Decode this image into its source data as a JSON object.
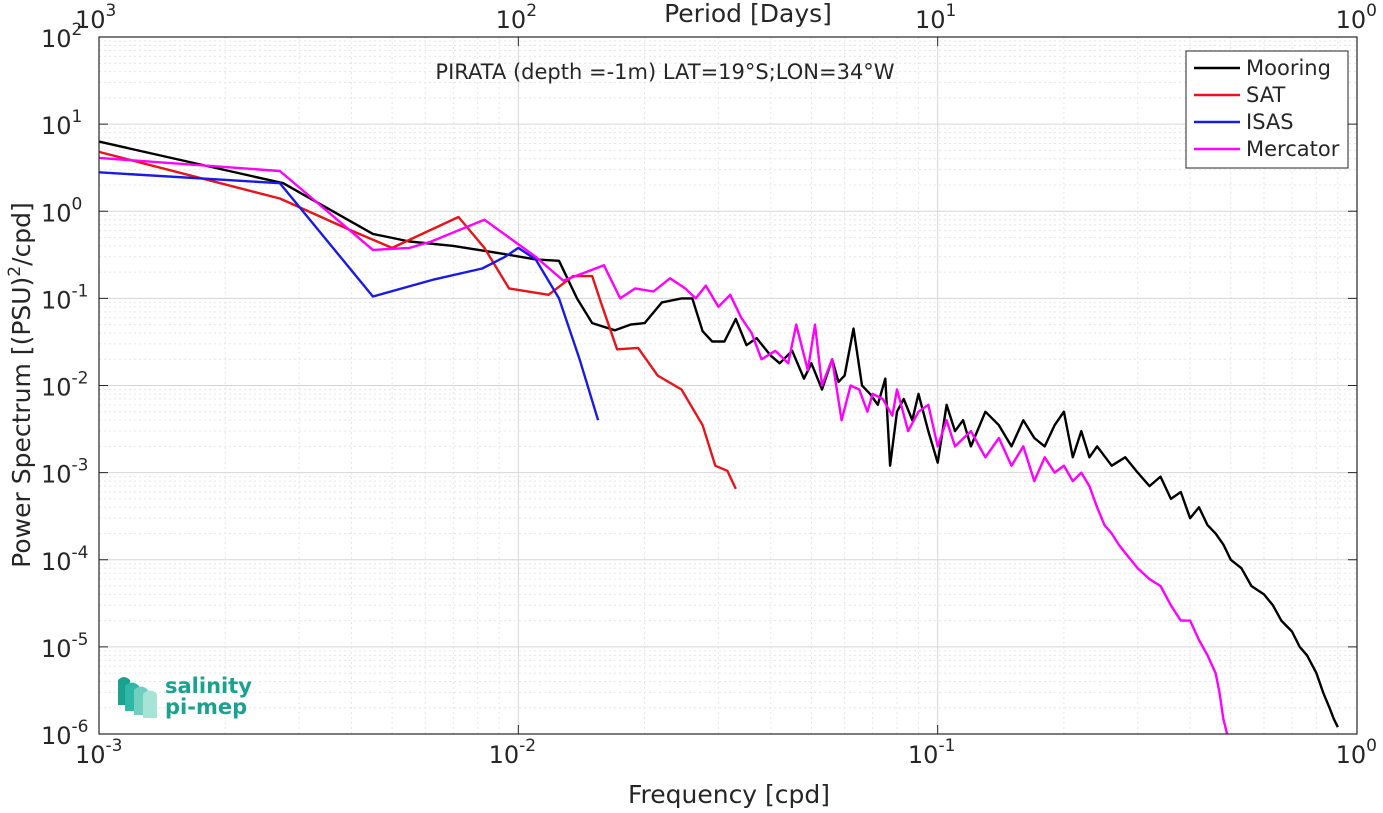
{
  "chart_data": {
    "type": "line",
    "title": "PIRATA (depth =-1m) LAT=19°S;LON=34°W",
    "xlabel": "Frequency [cpd]",
    "ylabel": "Power Spectrum [(PSU)",
    "ylabel_sup": "2",
    "ylabel_suffix": "/cpd]",
    "top_xlabel": "Period [Days]",
    "x_scale": "log",
    "y_scale": "log",
    "xlim": [
      0.001,
      1
    ],
    "ylim": [
      1e-06,
      100
    ],
    "grid": true,
    "legend_position": "top-right",
    "x_ticks": [
      {
        "value": 0.001,
        "base": "10",
        "exp": "-3"
      },
      {
        "value": 0.01,
        "base": "10",
        "exp": "-2"
      },
      {
        "value": 0.1,
        "base": "10",
        "exp": "-1"
      },
      {
        "value": 1,
        "base": "10",
        "exp": "0"
      }
    ],
    "top_ticks": [
      {
        "freq": 0.001,
        "base": "10",
        "exp": "3"
      },
      {
        "freq": 0.01,
        "base": "10",
        "exp": "2"
      },
      {
        "freq": 0.1,
        "base": "10",
        "exp": "1"
      },
      {
        "freq": 1,
        "base": "10",
        "exp": "0"
      }
    ],
    "y_ticks": [
      {
        "value": 1e-06,
        "base": "10",
        "exp": "-6"
      },
      {
        "value": 1e-05,
        "base": "10",
        "exp": "-5"
      },
      {
        "value": 0.0001,
        "base": "10",
        "exp": "-4"
      },
      {
        "value": 0.001,
        "base": "10",
        "exp": "-3"
      },
      {
        "value": 0.01,
        "base": "10",
        "exp": "-2"
      },
      {
        "value": 0.1,
        "base": "10",
        "exp": "-1"
      },
      {
        "value": 1,
        "base": "10",
        "exp": "0"
      },
      {
        "value": 10,
        "base": "10",
        "exp": "1"
      },
      {
        "value": 100,
        "base": "10",
        "exp": "2"
      }
    ],
    "series": [
      {
        "name": "Mooring",
        "color": "#000000",
        "points": [
          [
            0.001,
            6.3
          ],
          [
            0.00275,
            2.1
          ],
          [
            0.0045,
            0.55
          ],
          [
            0.0055,
            0.45
          ],
          [
            0.007,
            0.4
          ],
          [
            0.009,
            0.33
          ],
          [
            0.011,
            0.28
          ],
          [
            0.0125,
            0.27
          ],
          [
            0.0138,
            0.1
          ],
          [
            0.015,
            0.052
          ],
          [
            0.017,
            0.043
          ],
          [
            0.0185,
            0.05
          ],
          [
            0.02,
            0.052
          ],
          [
            0.022,
            0.09
          ],
          [
            0.0245,
            0.1
          ],
          [
            0.026,
            0.1
          ],
          [
            0.0275,
            0.042
          ],
          [
            0.029,
            0.032
          ],
          [
            0.031,
            0.032
          ],
          [
            0.033,
            0.058
          ],
          [
            0.035,
            0.029
          ],
          [
            0.037,
            0.035
          ],
          [
            0.04,
            0.022
          ],
          [
            0.042,
            0.018
          ],
          [
            0.045,
            0.025
          ],
          [
            0.048,
            0.012
          ],
          [
            0.05,
            0.018
          ],
          [
            0.053,
            0.009
          ],
          [
            0.056,
            0.02
          ],
          [
            0.058,
            0.011
          ],
          [
            0.06,
            0.013
          ],
          [
            0.063,
            0.045
          ],
          [
            0.066,
            0.01
          ],
          [
            0.069,
            0.008
          ],
          [
            0.072,
            0.006
          ],
          [
            0.075,
            0.012
          ],
          [
            0.077,
            0.0012
          ],
          [
            0.08,
            0.005
          ],
          [
            0.083,
            0.007
          ],
          [
            0.087,
            0.004
          ],
          [
            0.09,
            0.008
          ],
          [
            0.095,
            0.003
          ],
          [
            0.1,
            0.0013
          ],
          [
            0.105,
            0.006
          ],
          [
            0.11,
            0.003
          ],
          [
            0.115,
            0.004
          ],
          [
            0.12,
            0.002
          ],
          [
            0.13,
            0.005
          ],
          [
            0.14,
            0.0035
          ],
          [
            0.15,
            0.002
          ],
          [
            0.16,
            0.004
          ],
          [
            0.17,
            0.0025
          ],
          [
            0.18,
            0.002
          ],
          [
            0.19,
            0.0035
          ],
          [
            0.2,
            0.005
          ],
          [
            0.21,
            0.0015
          ],
          [
            0.22,
            0.003
          ],
          [
            0.23,
            0.0015
          ],
          [
            0.24,
            0.002
          ],
          [
            0.26,
            0.0012
          ],
          [
            0.28,
            0.0015
          ],
          [
            0.3,
            0.001
          ],
          [
            0.32,
            0.0007
          ],
          [
            0.34,
            0.0009
          ],
          [
            0.36,
            0.0005
          ],
          [
            0.38,
            0.0006
          ],
          [
            0.4,
            0.0003
          ],
          [
            0.42,
            0.0004
          ],
          [
            0.44,
            0.00025
          ],
          [
            0.46,
            0.0002
          ],
          [
            0.48,
            0.00015
          ],
          [
            0.5,
            0.0001
          ],
          [
            0.53,
            8e-05
          ],
          [
            0.56,
            5e-05
          ],
          [
            0.6,
            4e-05
          ],
          [
            0.63,
            3e-05
          ],
          [
            0.66,
            2e-05
          ],
          [
            0.7,
            1.5e-05
          ],
          [
            0.73,
            1e-05
          ],
          [
            0.76,
            8e-06
          ],
          [
            0.8,
            5e-06
          ],
          [
            0.83,
            3e-06
          ],
          [
            0.86,
            2e-06
          ],
          [
            0.88,
            1.5e-06
          ],
          [
            0.9,
            1.2e-06
          ]
        ]
      },
      {
        "name": "SAT",
        "color": "#e8141a",
        "points": [
          [
            0.001,
            4.8
          ],
          [
            0.0027,
            1.4
          ],
          [
            0.004,
            0.6
          ],
          [
            0.005,
            0.38
          ],
          [
            0.0072,
            0.86
          ],
          [
            0.0083,
            0.38
          ],
          [
            0.0095,
            0.13
          ],
          [
            0.0118,
            0.11
          ],
          [
            0.0135,
            0.18
          ],
          [
            0.015,
            0.18
          ],
          [
            0.0158,
            0.085
          ],
          [
            0.0172,
            0.026
          ],
          [
            0.0193,
            0.027
          ],
          [
            0.0215,
            0.013
          ],
          [
            0.0245,
            0.009
          ],
          [
            0.0275,
            0.0035
          ],
          [
            0.0295,
            0.0012
          ],
          [
            0.0315,
            0.00105
          ],
          [
            0.033,
            0.00065
          ]
        ]
      },
      {
        "name": "ISAS",
        "color": "#1a1ae6",
        "points": [
          [
            0.001,
            2.8
          ],
          [
            0.0027,
            2.1
          ],
          [
            0.0045,
            0.105
          ],
          [
            0.0063,
            0.165
          ],
          [
            0.0082,
            0.22
          ],
          [
            0.0093,
            0.3
          ],
          [
            0.01,
            0.38
          ],
          [
            0.011,
            0.28
          ],
          [
            0.0125,
            0.1
          ],
          [
            0.014,
            0.02
          ],
          [
            0.0155,
            0.004
          ]
        ]
      },
      {
        "name": "Mercator",
        "color": "#ff00ff",
        "points": [
          [
            0.001,
            4.1
          ],
          [
            0.0027,
            2.9
          ],
          [
            0.0045,
            0.36
          ],
          [
            0.0055,
            0.38
          ],
          [
            0.0062,
            0.45
          ],
          [
            0.0083,
            0.8
          ],
          [
            0.0095,
            0.5
          ],
          [
            0.011,
            0.3
          ],
          [
            0.0128,
            0.16
          ],
          [
            0.0145,
            0.2
          ],
          [
            0.016,
            0.24
          ],
          [
            0.0175,
            0.1
          ],
          [
            0.019,
            0.13
          ],
          [
            0.021,
            0.12
          ],
          [
            0.023,
            0.17
          ],
          [
            0.025,
            0.13
          ],
          [
            0.0265,
            0.1
          ],
          [
            0.028,
            0.14
          ],
          [
            0.03,
            0.08
          ],
          [
            0.032,
            0.11
          ],
          [
            0.034,
            0.06
          ],
          [
            0.036,
            0.04
          ],
          [
            0.038,
            0.02
          ],
          [
            0.041,
            0.025
          ],
          [
            0.044,
            0.018
          ],
          [
            0.046,
            0.05
          ],
          [
            0.049,
            0.015
          ],
          [
            0.051,
            0.05
          ],
          [
            0.053,
            0.01
          ],
          [
            0.056,
            0.02
          ],
          [
            0.059,
            0.004
          ],
          [
            0.062,
            0.01
          ],
          [
            0.065,
            0.009
          ],
          [
            0.068,
            0.005
          ],
          [
            0.07,
            0.008
          ],
          [
            0.074,
            0.007
          ],
          [
            0.078,
            0.0045
          ],
          [
            0.08,
            0.009
          ],
          [
            0.085,
            0.003
          ],
          [
            0.09,
            0.005
          ],
          [
            0.095,
            0.006
          ],
          [
            0.1,
            0.002
          ],
          [
            0.105,
            0.004
          ],
          [
            0.11,
            0.002
          ],
          [
            0.12,
            0.003
          ],
          [
            0.13,
            0.0015
          ],
          [
            0.14,
            0.0025
          ],
          [
            0.15,
            0.0012
          ],
          [
            0.16,
            0.002
          ],
          [
            0.17,
            0.0008
          ],
          [
            0.18,
            0.0015
          ],
          [
            0.19,
            0.001
          ],
          [
            0.2,
            0.0012
          ],
          [
            0.21,
            0.0008
          ],
          [
            0.22,
            0.001
          ],
          [
            0.23,
            0.0007
          ],
          [
            0.24,
            0.0004
          ],
          [
            0.25,
            0.00025
          ],
          [
            0.26,
            0.0002
          ],
          [
            0.27,
            0.00015
          ],
          [
            0.28,
            0.00012
          ],
          [
            0.3,
            8e-05
          ],
          [
            0.32,
            6e-05
          ],
          [
            0.34,
            5e-05
          ],
          [
            0.36,
            3e-05
          ],
          [
            0.38,
            2e-05
          ],
          [
            0.4,
            2e-05
          ],
          [
            0.42,
            1.2e-05
          ],
          [
            0.44,
            8e-06
          ],
          [
            0.46,
            5e-06
          ],
          [
            0.47,
            3e-06
          ],
          [
            0.48,
            1.5e-06
          ],
          [
            0.49,
            1e-06
          ]
        ]
      }
    ]
  },
  "logo": {
    "line1": "salinity",
    "line2": "pi-mep",
    "color": "#1aa190"
  }
}
